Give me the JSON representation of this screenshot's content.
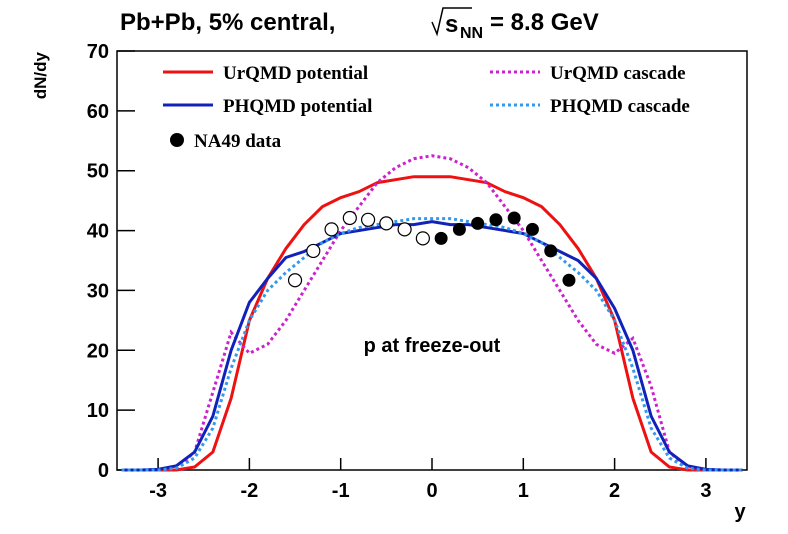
{
  "chart_data": {
    "type": "line",
    "title_parts": [
      "Pb+Pb, 5% central,",
      "s",
      "NN",
      "= 8.8 GeV"
    ],
    "y_axis_label": "dN/dy",
    "x_axis_label": "y",
    "annotation": "p at freeze-out",
    "xlim": [
      -3.45,
      3.45
    ],
    "ylim": [
      0,
      70
    ],
    "xticks": [
      -3,
      -2,
      -1,
      0,
      1,
      2,
      3
    ],
    "yticks": [
      0,
      10,
      20,
      30,
      40,
      50,
      60,
      70
    ],
    "x": [
      -3.4,
      -3.2,
      -3.0,
      -2.8,
      -2.6,
      -2.4,
      -2.2,
      -2.0,
      -1.8,
      -1.6,
      -1.4,
      -1.2,
      -1.0,
      -0.8,
      -0.6,
      -0.4,
      -0.2,
      0.0,
      0.2,
      0.4,
      0.6,
      0.8,
      1.0,
      1.2,
      1.4,
      1.6,
      1.8,
      2.0,
      2.2,
      2.4,
      2.6,
      2.8,
      3.0,
      3.2,
      3.4
    ],
    "series": [
      {
        "name": "UrQMD potential",
        "color": "#ee1111",
        "dash": false,
        "values": [
          0,
          0,
          0,
          0,
          0.5,
          3,
          12,
          25,
          32,
          37,
          41,
          44,
          45.5,
          46.5,
          48,
          48.5,
          49,
          49,
          49,
          48.5,
          48,
          46.5,
          45.5,
          44,
          41,
          37,
          32,
          25,
          12,
          3,
          0.5,
          0,
          0,
          0,
          0
        ]
      },
      {
        "name": "UrQMD cascade",
        "color": "#cc22cc",
        "dash": true,
        "values": [
          0,
          0,
          0,
          0.3,
          3,
          13,
          23,
          19.5,
          21,
          25,
          30,
          35,
          40,
          44,
          48,
          50.5,
          52,
          52.5,
          52,
          50.5,
          48,
          44,
          40,
          35,
          30,
          25,
          21,
          19.5,
          22,
          14,
          3,
          0.3,
          0,
          0,
          0
        ]
      },
      {
        "name": "PHQMD potential",
        "color": "#1122bb",
        "dash": false,
        "values": [
          0,
          0,
          0.1,
          0.7,
          3,
          9,
          20,
          28,
          32,
          35.5,
          36.5,
          38,
          39.5,
          40,
          40.5,
          41,
          41,
          41.5,
          41,
          41,
          40.5,
          40,
          39.5,
          38,
          36.5,
          35,
          32,
          27,
          20,
          9,
          3,
          0.7,
          0.1,
          0,
          0
        ]
      },
      {
        "name": "PHQMD cascade",
        "color": "#3399ee",
        "dash": true,
        "values": [
          0,
          0,
          0,
          0.3,
          2,
          7,
          17,
          25,
          30,
          33,
          35.5,
          38,
          39.5,
          40.5,
          41,
          41.5,
          42,
          42,
          42,
          41.5,
          41,
          40.5,
          39.5,
          38,
          35.5,
          33,
          30,
          25,
          17,
          7,
          2,
          0.3,
          0,
          0,
          0
        ]
      }
    ],
    "points": {
      "name": "NA49 data",
      "color": "#000000",
      "x": [
        0.1,
        0.3,
        0.5,
        0.7,
        0.9,
        1.1,
        1.3,
        1.5
      ],
      "values": [
        38.7,
        40.2,
        41.2,
        41.8,
        42.1,
        40.2,
        36.6,
        31.7
      ],
      "open_x": [
        -0.1,
        -0.3,
        -0.5,
        -0.7,
        -0.9,
        -1.1,
        -1.3,
        -1.5
      ],
      "open_values": [
        38.7,
        40.2,
        41.2,
        41.8,
        42.1,
        40.2,
        36.6,
        31.7
      ]
    }
  }
}
